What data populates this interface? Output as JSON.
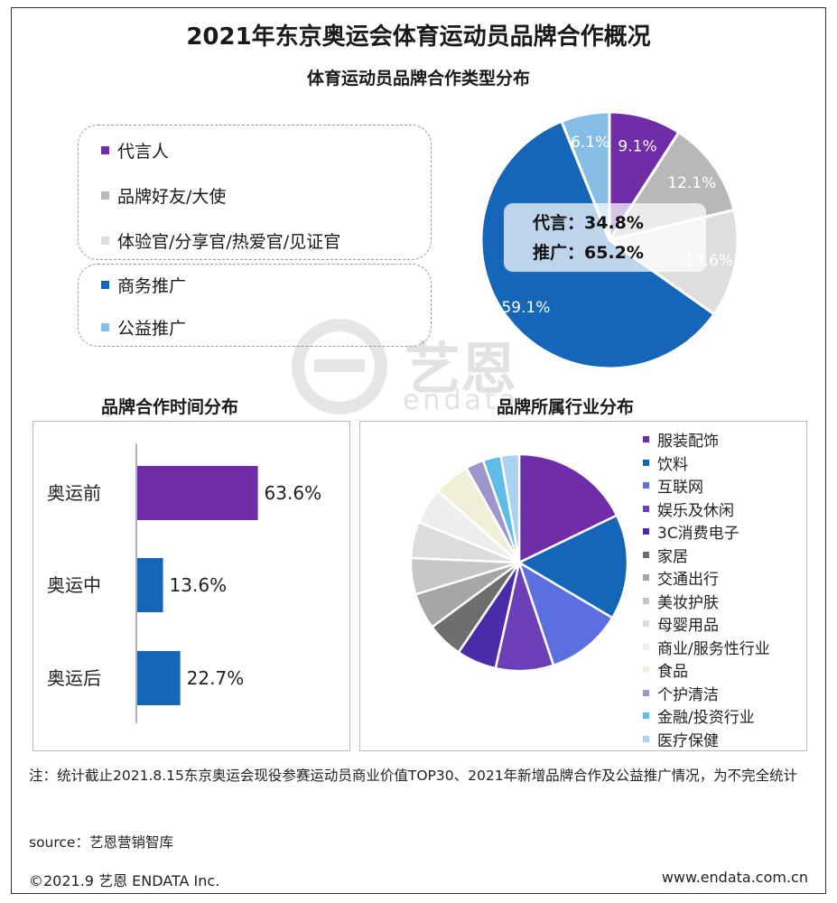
{
  "header": {
    "title": "2021年东京奥运会体育运动员品牌合作概况",
    "subtitle": "体育运动员品牌合作类型分布"
  },
  "watermark": {
    "text": "艺恩",
    "sub": "endata"
  },
  "chart_data": [
    {
      "type": "pie",
      "title": "体育运动员品牌合作类型分布",
      "slices": [
        {
          "label": "代言人",
          "value": 9.1,
          "value_label": "9.1%",
          "color": "#6f2da8"
        },
        {
          "label": "品牌好友/大使",
          "value": 12.1,
          "value_label": "12.1%",
          "color": "#b8b8b8"
        },
        {
          "label": "体验官/分享官/热爱官/见证官",
          "value": 13.6,
          "value_label": "13.6%",
          "color": "#dedede"
        },
        {
          "label": "商务推广",
          "value": 59.1,
          "value_label": "59.1%",
          "color": "#1565b8"
        },
        {
          "label": "公益推广",
          "value": 6.1,
          "value_label": "6.1%",
          "color": "#86bde6"
        }
      ],
      "legend_groups": [
        [
          0,
          1,
          2
        ],
        [
          3,
          4
        ]
      ],
      "summary": [
        {
          "label": "代言：",
          "value": "34.8%"
        },
        {
          "label": "推广：",
          "value": "65.2%"
        }
      ]
    },
    {
      "type": "bar",
      "orientation": "horizontal",
      "title": "品牌合作时间分布",
      "categories": [
        "奥运前",
        "奥运中",
        "奥运后"
      ],
      "values": [
        63.6,
        13.6,
        22.7
      ],
      "value_labels": [
        "63.6%",
        "13.6%",
        "22.7%"
      ],
      "colors": [
        "#6f2da8",
        "#1565b8",
        "#1565b8"
      ],
      "xlim": [
        0,
        100
      ]
    },
    {
      "type": "pie",
      "title": "品牌所属行业分布",
      "categories": [
        "服装配饰",
        "饮料",
        "互联网",
        "娱乐及休闲",
        "3C消费电子",
        "家居",
        "交通出行",
        "美妆护肤",
        "母婴用品",
        "商业/服务性行业",
        "食品",
        "个护清洁",
        "金融/投资行业",
        "医疗保健"
      ],
      "values": [
        16.5,
        14.5,
        10.5,
        8.0,
        5.5,
        5.0,
        5.0,
        5.0,
        5.0,
        5.0,
        5.0,
        2.5,
        2.5,
        2.5
      ],
      "colors": [
        "#6f2da8",
        "#1565b8",
        "#5b6fe0",
        "#6b3fb8",
        "#4a2ca8",
        "#6e6e6e",
        "#a6a6a6",
        "#c6c6c6",
        "#dcdcdc",
        "#eeeeee",
        "#f1efd8",
        "#9d95cc",
        "#5fbde8",
        "#a9d1f1"
      ]
    }
  ],
  "sections": {
    "time_title": "品牌合作时间分布",
    "industry_title": "品牌所属行业分布"
  },
  "note": "注：统计截止2021.8.15东京奥运会现役参赛运动员商业价值TOP30、2021年新增品牌合作及公益推广情况，为不完全统计",
  "source": "source：艺恩营销智库",
  "footer": {
    "copyright": "©2021.9 艺恩 ENDATA Inc.",
    "website": "www.endata.com.cn"
  }
}
